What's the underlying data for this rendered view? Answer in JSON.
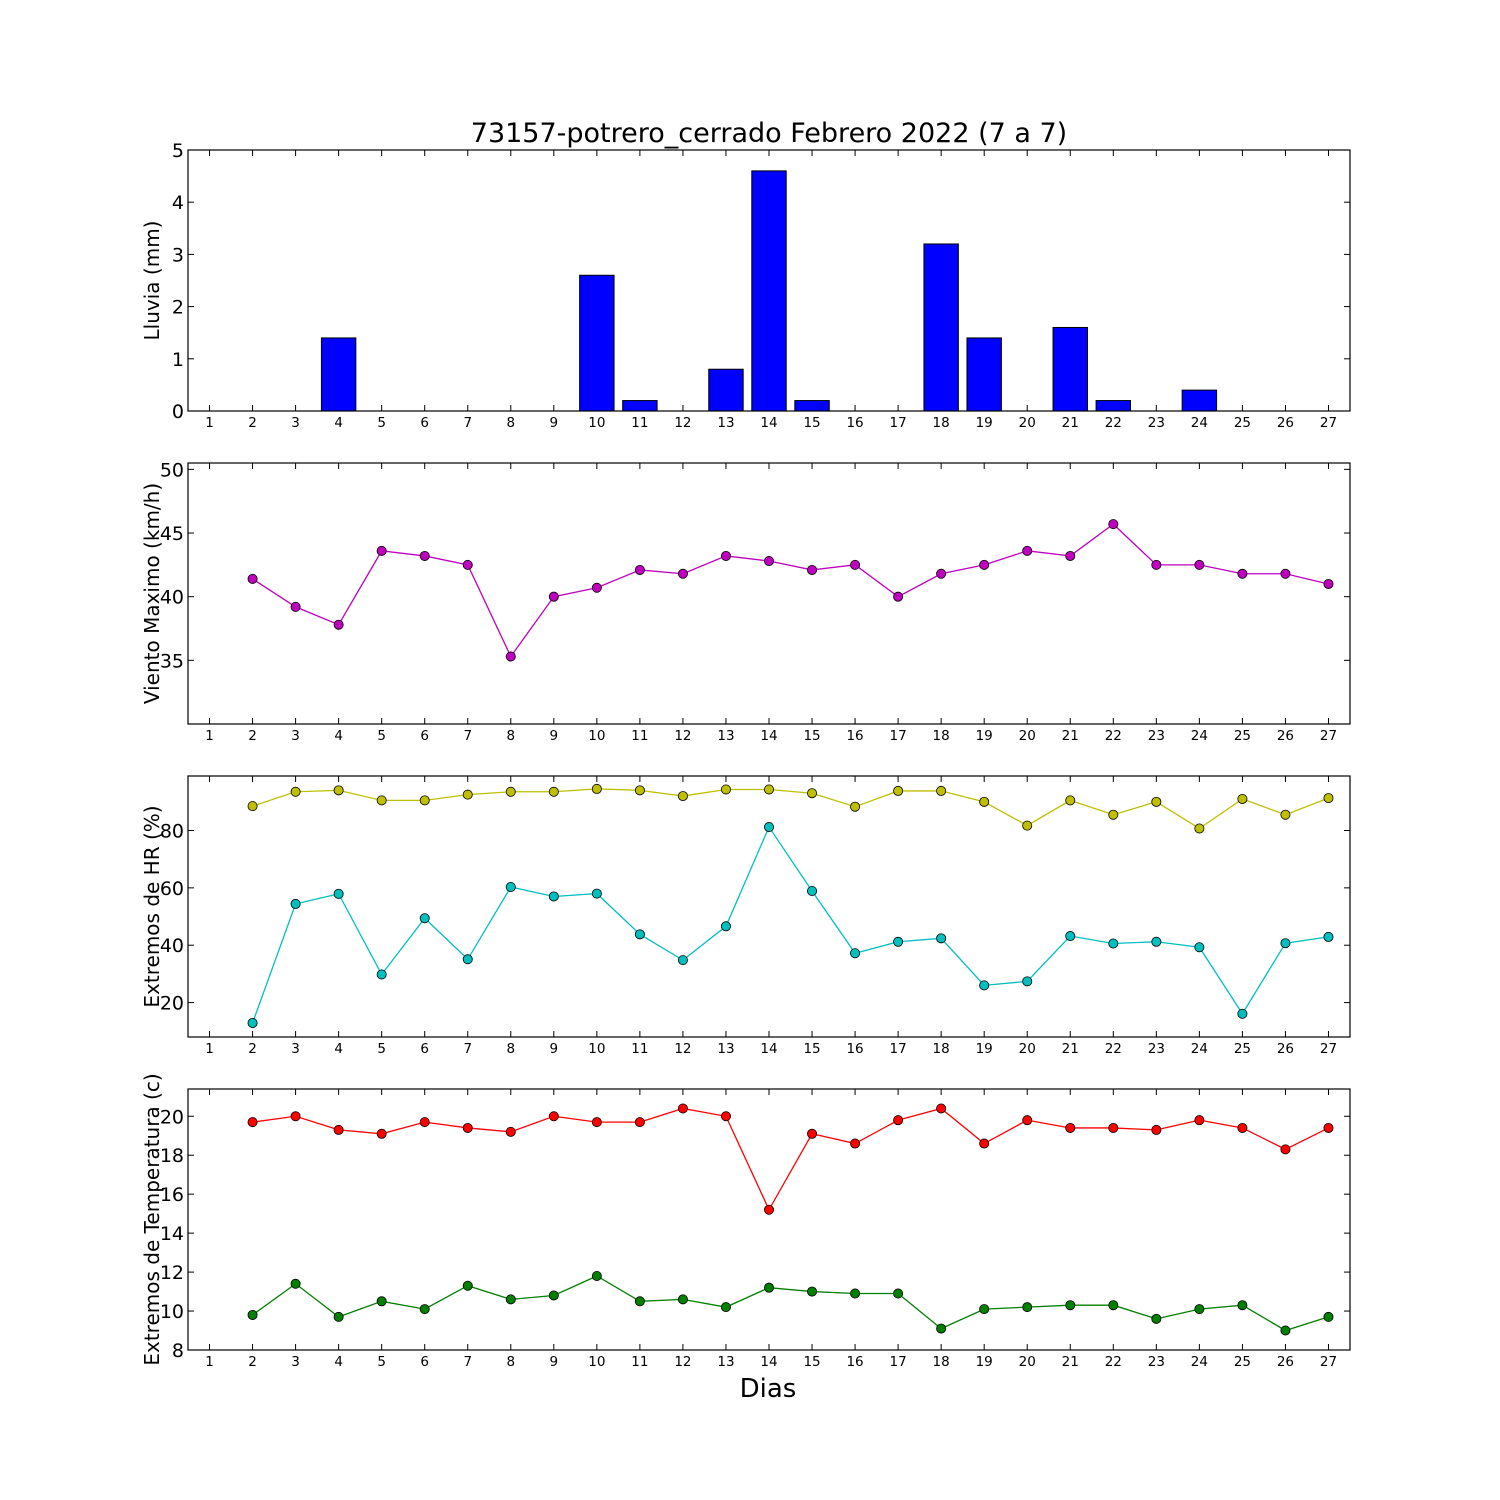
{
  "figure": {
    "title": "73157-potrero_cerrado Febrero 2022  (7 a 7)",
    "xlabel": "Dias"
  },
  "chart_data": [
    {
      "type": "bar",
      "ylabel": "Lluvia (mm)",
      "x": [
        1,
        2,
        3,
        4,
        5,
        6,
        7,
        8,
        9,
        10,
        11,
        12,
        13,
        14,
        15,
        16,
        17,
        18,
        19,
        20,
        21,
        22,
        23,
        24,
        25,
        26,
        27
      ],
      "values": [
        0,
        0,
        0,
        1.4,
        0,
        0,
        0,
        0,
        0,
        2.6,
        0.2,
        0,
        0.8,
        4.6,
        0.2,
        0,
        0,
        3.2,
        1.4,
        0,
        1.6,
        0.2,
        0,
        0.4,
        0,
        0,
        0
      ],
      "ylim": [
        0,
        5
      ],
      "yticks": [
        0,
        1,
        2,
        3,
        4,
        5
      ],
      "color": "#0000ff"
    },
    {
      "type": "line",
      "ylabel": "Viento Maximo (km/h)",
      "x": [
        2,
        3,
        4,
        5,
        6,
        7,
        8,
        9,
        10,
        11,
        12,
        13,
        14,
        15,
        16,
        17,
        18,
        19,
        20,
        21,
        22,
        23,
        24,
        25,
        26,
        27
      ],
      "series": [
        {
          "values": [
            41.4,
            39.2,
            37.8,
            43.6,
            43.2,
            42.5,
            35.3,
            40.0,
            40.7,
            42.1,
            41.8,
            43.2,
            42.8,
            42.1,
            42.5,
            40.0,
            41.8,
            42.5,
            43.6,
            43.2,
            45.7,
            42.5,
            42.5,
            41.8,
            41.8,
            41.0
          ],
          "color": "#bf00bf"
        }
      ],
      "ylim": [
        30,
        50.5
      ],
      "yticks": [
        35,
        40,
        45,
        50
      ]
    },
    {
      "type": "line",
      "ylabel": "Extremos de HR (%)",
      "x": [
        2,
        3,
        4,
        5,
        6,
        7,
        8,
        9,
        10,
        11,
        12,
        13,
        14,
        15,
        16,
        17,
        18,
        19,
        20,
        21,
        22,
        23,
        24,
        25,
        26,
        27
      ],
      "series": [
        {
          "values": [
            88.5,
            93.5,
            94,
            90.5,
            90.5,
            92.5,
            93.5,
            93.5,
            94.5,
            94,
            92,
            94.3,
            94.3,
            93,
            88.3,
            93.8,
            93.8,
            90,
            81.7,
            90.5,
            85.5,
            90,
            80.7,
            91,
            85.5,
            91.3
          ],
          "color": "#bfbf00"
        },
        {
          "values": [
            12.9,
            54.4,
            57.9,
            29.8,
            49.4,
            35.1,
            60.3,
            57,
            58,
            43.8,
            34.8,
            46.6,
            81.2,
            58.9,
            37.2,
            41.2,
            42.4,
            26,
            27.4,
            43.2,
            40.6,
            41.2,
            39.3,
            16.1,
            40.7,
            42.9
          ],
          "color": "#00bfbf"
        }
      ],
      "ylim": [
        8,
        99
      ],
      "yticks": [
        20,
        40,
        60,
        80
      ]
    },
    {
      "type": "line",
      "ylabel": "Extremos de Temperatura (c)",
      "x": [
        2,
        3,
        4,
        5,
        6,
        7,
        8,
        9,
        10,
        11,
        12,
        13,
        14,
        15,
        16,
        17,
        18,
        19,
        20,
        21,
        22,
        23,
        24,
        25,
        26,
        27
      ],
      "series": [
        {
          "values": [
            19.7,
            20,
            19.3,
            19.1,
            19.7,
            19.4,
            19.2,
            20,
            19.7,
            19.7,
            20.4,
            20,
            15.2,
            19.1,
            18.6,
            19.8,
            20.4,
            18.6,
            19.8,
            19.4,
            19.4,
            19.3,
            19.8,
            19.4,
            18.3,
            19.4
          ],
          "color": "#ff0000"
        },
        {
          "values": [
            9.8,
            11.4,
            9.7,
            10.5,
            10.1,
            11.3,
            10.6,
            10.8,
            11.8,
            10.5,
            10.6,
            10.2,
            11.2,
            11,
            10.9,
            10.9,
            9.1,
            10.1,
            10.2,
            10.3,
            10.3,
            9.6,
            10.1,
            10.3,
            9,
            9.7
          ],
          "color": "#007f00"
        }
      ],
      "ylim": [
        8,
        21.4
      ],
      "yticks": [
        8,
        10,
        12,
        14,
        16,
        18,
        20
      ]
    }
  ]
}
